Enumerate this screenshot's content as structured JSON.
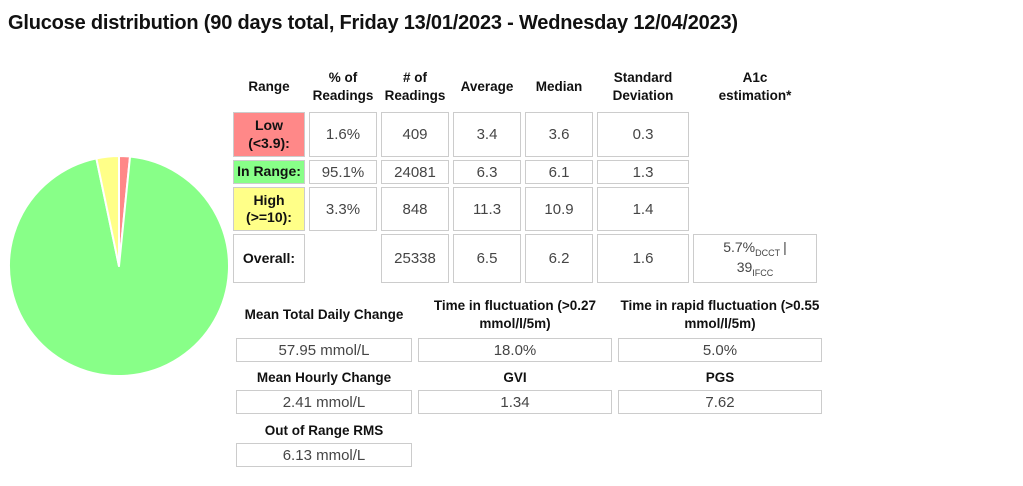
{
  "title": "Glucose distribution (90 days total, Friday 13/01/2023 - Wednesday 12/04/2023)",
  "colors": {
    "low": "#ff8888",
    "in_range": "#88ff88",
    "high": "#ffff88",
    "cell_border": "#cccccc",
    "value_text": "#454545",
    "heading_text": "#111111"
  },
  "chart_data": {
    "type": "pie",
    "title": "Glucose range distribution pie",
    "start_angle": "12-oclock",
    "direction": "clockwise",
    "legend_position": "none",
    "slices": [
      {
        "label": "Low (<3.9)",
        "value_percent": 1.6,
        "color": "#ff8888"
      },
      {
        "label": "In Range",
        "value_percent": 95.1,
        "color": "#88ff88"
      },
      {
        "label": "High (>=10)",
        "value_percent": 3.3,
        "color": "#ffff88"
      }
    ]
  },
  "distribution_table": {
    "headers": {
      "range": "Range",
      "pct": "% of Readings",
      "count": "# of Readings",
      "average": "Average",
      "median": "Median",
      "std_dev": "Standard Deviation",
      "a1c": "A1c estimation*"
    },
    "rows": [
      {
        "label": "Low (<3.9):",
        "pct": "1.6%",
        "count": "409",
        "average": "3.4",
        "median": "3.6",
        "std_dev": "0.3"
      },
      {
        "label": "In Range:",
        "pct": "95.1%",
        "count": "24081",
        "average": "6.3",
        "median": "6.1",
        "std_dev": "1.3"
      },
      {
        "label": "High (>=10):",
        "pct": "3.3%",
        "count": "848",
        "average": "11.3",
        "median": "10.9",
        "std_dev": "1.4"
      },
      {
        "label": "Overall:",
        "pct": "",
        "count": "25338",
        "average": "6.5",
        "median": "6.2",
        "std_dev": "1.6"
      }
    ],
    "a1c_overall": {
      "dcct_value": "5.7%",
      "dcct_label": "DCCT",
      "separator": "|",
      "ifcc_value": "39",
      "ifcc_label": "IFCC"
    }
  },
  "variability_table": {
    "row1_headers": [
      "Mean Total Daily Change",
      "Time in fluctuation (>0.27 mmol/l/5m)",
      "Time in rapid fluctuation (>0.55 mmol/l/5m)"
    ],
    "row1_values": [
      "57.95 mmol/L",
      "18.0%",
      "5.0%"
    ],
    "row2_headers": [
      "Mean Hourly Change",
      "GVI",
      "PGS"
    ],
    "row2_values": [
      "2.41 mmol/L",
      "1.34",
      "7.62"
    ],
    "row3_header": "Out of Range RMS",
    "row3_value": "6.13 mmol/L"
  }
}
